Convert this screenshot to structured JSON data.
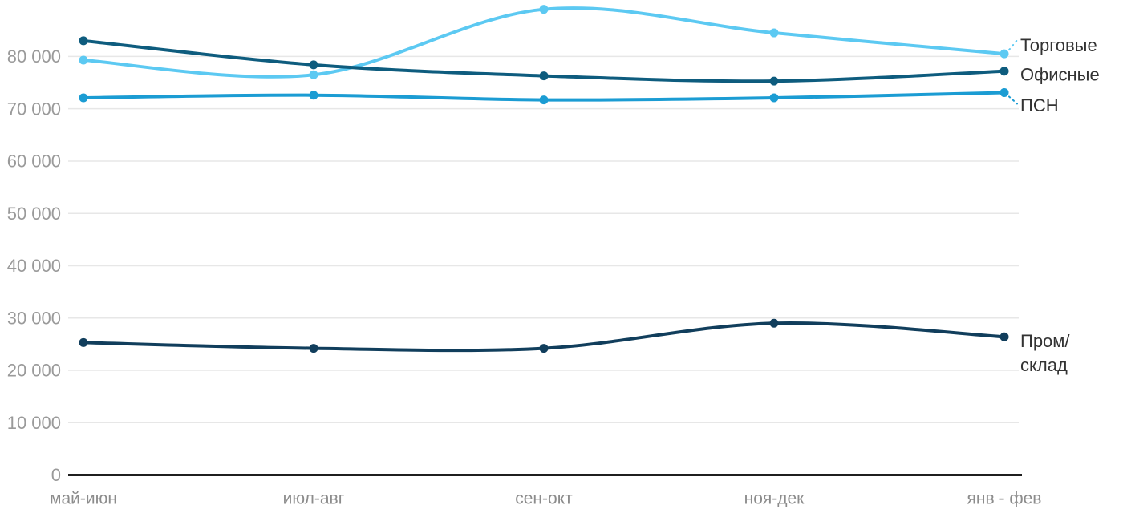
{
  "chart_data": {
    "type": "line",
    "title": "",
    "xlabel": "",
    "ylabel": "",
    "categories": [
      "май-июн",
      "июл-авг",
      "сен-окт",
      "ноя-дек",
      "янв - фев"
    ],
    "series": [
      {
        "name": "Торговые",
        "color": "#5CC9F2",
        "values": [
          79300,
          76500,
          89000,
          84500,
          80500
        ]
      },
      {
        "name": "Офисные",
        "color": "#0E5C7E",
        "values": [
          83000,
          78400,
          76300,
          75300,
          77200
        ]
      },
      {
        "name": "ПСН",
        "color": "#1B9CD3",
        "values": [
          72100,
          72600,
          71700,
          72100,
          73100
        ]
      },
      {
        "name": "Пром/склад",
        "color": "#113E5C",
        "values": [
          25300,
          24200,
          24200,
          29000,
          26400
        ],
        "label_lines": [
          "Пром/",
          "склад"
        ]
      }
    ],
    "y_ticks": [
      {
        "value": 0,
        "label": "0"
      },
      {
        "value": 10000,
        "label": "10 000"
      },
      {
        "value": 20000,
        "label": "20 000"
      },
      {
        "value": 30000,
        "label": "30 000"
      },
      {
        "value": 40000,
        "label": "40 000"
      },
      {
        "value": 50000,
        "label": "50 000"
      },
      {
        "value": 60000,
        "label": "60 000"
      },
      {
        "value": 70000,
        "label": "70 000"
      },
      {
        "value": 80000,
        "label": "80 000"
      }
    ],
    "ylim": [
      0,
      90000
    ],
    "grid": true,
    "legend_position": "end-of-line-right",
    "line_style": "smooth",
    "markers": true,
    "colors": {
      "grid": "#E7E7E7",
      "axis": "#1F1F1F",
      "tick_text": "#9A9A9A",
      "category_text": "#8C8C8C",
      "legend_text": "#333333",
      "background": "#FFFFFF"
    }
  }
}
